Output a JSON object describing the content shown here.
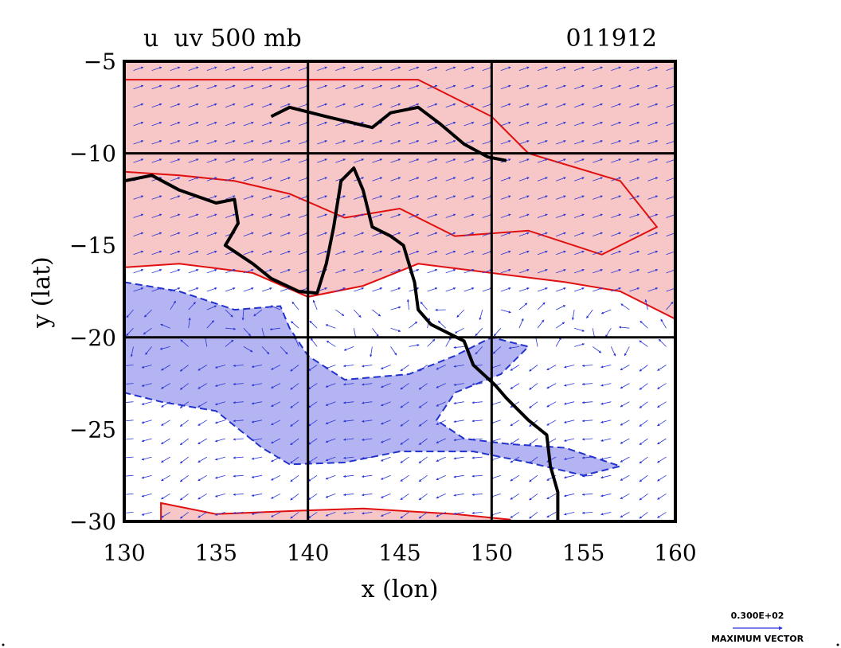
{
  "chart_data": {
    "type": "contour",
    "title": "u  uv 500 mb",
    "date_label": "011912",
    "xlabel": "x (lon)",
    "ylabel": "y (lat)",
    "xlim": [
      130,
      160
    ],
    "ylim": [
      -30,
      -5
    ],
    "xticks": [
      130,
      135,
      140,
      145,
      150,
      155,
      160
    ],
    "yticks": [
      -5,
      -10,
      -15,
      -20,
      -25,
      -30
    ],
    "grid": true,
    "gridlines_x": [
      140,
      150
    ],
    "gridlines_y": [
      -10,
      -20
    ],
    "colors": {
      "positive_fill": "#f7c6c6",
      "positive_line": "#e01010",
      "negative_fill": "#b4b4f2",
      "negative_line": "#2233cc",
      "vector": "#2a35d6",
      "coastline": "#000000"
    },
    "positive_region": [
      [
        130,
        -5
      ],
      [
        160,
        -5
      ],
      [
        160,
        -19
      ],
      [
        157,
        -17.5
      ],
      [
        154,
        -17
      ],
      [
        150,
        -16.5
      ],
      [
        146,
        -16
      ],
      [
        143,
        -17.2
      ],
      [
        140,
        -17.8
      ],
      [
        137,
        -16.5
      ],
      [
        133,
        -16
      ],
      [
        130,
        -16.2
      ]
    ],
    "positive_inner": [
      [
        130,
        -6
      ],
      [
        146,
        -6
      ],
      [
        150,
        -8
      ],
      [
        152,
        -10
      ],
      [
        157,
        -11.5
      ],
      [
        159,
        -14
      ],
      [
        156,
        -15.5
      ],
      [
        152,
        -14.2
      ],
      [
        148,
        -14.5
      ],
      [
        145,
        -13
      ],
      [
        142,
        -13.5
      ],
      [
        139,
        -12.2
      ],
      [
        136,
        -11.5
      ],
      [
        133,
        -11.2
      ],
      [
        130,
        -11
      ]
    ],
    "positive_south": [
      [
        132,
        -29
      ],
      [
        135,
        -29.6
      ],
      [
        140,
        -29.4
      ],
      [
        143,
        -29.3
      ],
      [
        148,
        -29.6
      ],
      [
        151,
        -29.9
      ],
      [
        151,
        -30
      ],
      [
        132,
        -30
      ]
    ],
    "negative_region": [
      [
        130,
        -17
      ],
      [
        133,
        -17.5
      ],
      [
        136,
        -18.5
      ],
      [
        138.5,
        -18.3
      ],
      [
        139,
        -19.5
      ],
      [
        140,
        -21
      ],
      [
        142,
        -22.3
      ],
      [
        145.5,
        -22
      ],
      [
        148,
        -21
      ],
      [
        150,
        -20
      ],
      [
        152,
        -20.5
      ],
      [
        150.5,
        -22
      ],
      [
        148,
        -23
      ],
      [
        147,
        -24.5
      ],
      [
        148.5,
        -25.5
      ],
      [
        151,
        -25.8
      ],
      [
        154,
        -26
      ],
      [
        157,
        -27
      ],
      [
        155,
        -27.5
      ],
      [
        152,
        -26.8
      ],
      [
        149,
        -26.2
      ],
      [
        145,
        -26.2
      ],
      [
        142,
        -26.8
      ],
      [
        139,
        -26.9
      ],
      [
        137.5,
        -26
      ],
      [
        135,
        -24
      ],
      [
        132,
        -23.5
      ],
      [
        130,
        -23
      ]
    ],
    "coastline_1": [
      [
        130,
        -11.5
      ],
      [
        131.5,
        -11.2
      ],
      [
        133,
        -12
      ],
      [
        135,
        -12.7
      ],
      [
        136,
        -12.5
      ],
      [
        136.2,
        -13.8
      ],
      [
        135.8,
        -14.5
      ],
      [
        135.5,
        -15
      ],
      [
        137,
        -16
      ],
      [
        138,
        -16.8
      ],
      [
        139.5,
        -17.5
      ],
      [
        140.5,
        -17.6
      ],
      [
        141,
        -16
      ],
      [
        141.4,
        -14
      ],
      [
        141.8,
        -11.5
      ],
      [
        142.5,
        -10.8
      ],
      [
        143,
        -12
      ],
      [
        143.5,
        -14
      ],
      [
        144.5,
        -14.5
      ],
      [
        145.2,
        -15
      ],
      [
        145.5,
        -16
      ],
      [
        145.8,
        -17
      ],
      [
        146,
        -18.5
      ],
      [
        146.7,
        -19.3
      ],
      [
        148.5,
        -20.2
      ],
      [
        149,
        -21.5
      ],
      [
        150.2,
        -22.6
      ],
      [
        150.8,
        -23.3
      ],
      [
        152,
        -24.5
      ],
      [
        153,
        -25.3
      ],
      [
        153.2,
        -27
      ],
      [
        153.6,
        -28.4
      ],
      [
        153.6,
        -30
      ]
    ],
    "coastline_2": [
      [
        138,
        -8
      ],
      [
        139,
        -7.5
      ],
      [
        141,
        -8
      ],
      [
        143.5,
        -8.6
      ],
      [
        144.5,
        -7.8
      ],
      [
        146,
        -7.5
      ],
      [
        147.2,
        -8.4
      ],
      [
        148.5,
        -9.5
      ],
      [
        149.8,
        -10.2
      ],
      [
        150.8,
        -10.4
      ]
    ],
    "vector_key": {
      "value_label": "0.300E+02",
      "caption": "MAXIMUM VECTOR"
    }
  }
}
